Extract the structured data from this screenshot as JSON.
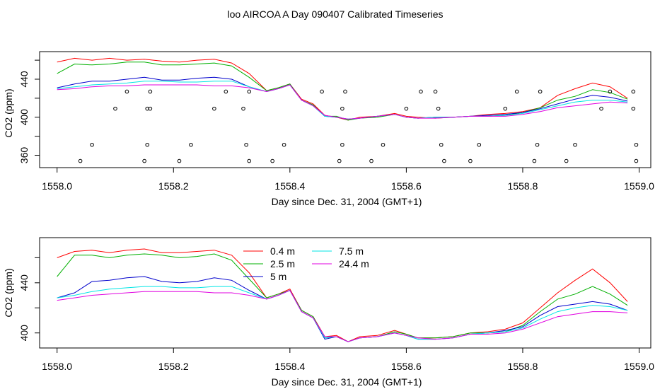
{
  "title": "loo AIRCOA A  Day 090407  Calibrated Timeseries",
  "colors": {
    "0.4 m": "#ff0000",
    "2.5 m": "#00b000",
    "5 m": "#0000cc",
    "7.5 m": "#00e5e5",
    "24.4 m": "#e000e0"
  },
  "chart_data": [
    {
      "type": "line",
      "xlabel": "Day since Dec. 31, 2004 (GMT+1)",
      "ylabel": "CO2 (ppm)",
      "xlim": [
        1557.97,
        1559.02
      ],
      "ylim": [
        347,
        469
      ],
      "xticks": [
        1558.0,
        1558.2,
        1558.4,
        1558.6,
        1558.8,
        1559.0
      ],
      "xtick_labels": [
        "1558.0",
        "1558.2",
        "1558.4",
        "1558.6",
        "1558.8",
        "1559.0"
      ],
      "yticks": [
        360,
        400,
        440
      ],
      "ytick_labels": [
        "360",
        "400",
        "440"
      ],
      "grid": false,
      "x": [
        1558.0,
        1558.03,
        1558.06,
        1558.09,
        1558.12,
        1558.15,
        1558.18,
        1558.21,
        1558.24,
        1558.27,
        1558.3,
        1558.33,
        1558.36,
        1558.38,
        1558.4,
        1558.42,
        1558.44,
        1558.46,
        1558.48,
        1558.5,
        1558.52,
        1558.55,
        1558.58,
        1558.6,
        1558.62,
        1558.65,
        1558.68,
        1558.71,
        1558.74,
        1558.77,
        1558.8,
        1558.83,
        1558.86,
        1558.89,
        1558.92,
        1558.95,
        1558.98
      ],
      "series": [
        {
          "name": "0.4 m",
          "values": [
            458,
            462,
            460,
            462,
            460,
            461,
            459,
            458,
            460,
            461,
            457,
            446,
            428,
            431,
            435,
            419,
            414,
            402,
            400,
            397,
            400,
            401,
            404,
            401,
            400,
            399,
            400,
            401,
            403,
            404,
            406,
            410,
            423,
            430,
            436,
            432,
            420
          ]
        },
        {
          "name": "2.5 m",
          "values": [
            446,
            456,
            455,
            456,
            458,
            458,
            455,
            455,
            456,
            457,
            454,
            442,
            428,
            431,
            435,
            418,
            413,
            401,
            401,
            397,
            399,
            400,
            403,
            400,
            399,
            400,
            400,
            401,
            401,
            402,
            405,
            410,
            418,
            422,
            429,
            426,
            419
          ]
        },
        {
          "name": "5 m",
          "values": [
            431,
            435,
            438,
            438,
            440,
            442,
            439,
            439,
            441,
            442,
            440,
            432,
            427,
            430,
            434,
            418,
            412,
            401,
            400,
            398,
            399,
            401,
            403,
            400,
            399,
            400,
            400,
            401,
            402,
            403,
            405,
            409,
            414,
            419,
            423,
            421,
            417
          ]
        },
        {
          "name": "7.5 m",
          "values": [
            430,
            432,
            434,
            435,
            436,
            438,
            438,
            437,
            437,
            438,
            438,
            432,
            427,
            430,
            434,
            418,
            412,
            401,
            400,
            398,
            399,
            401,
            403,
            400,
            399,
            400,
            400,
            401,
            401,
            402,
            404,
            408,
            412,
            416,
            418,
            418,
            416
          ]
        },
        {
          "name": "24.4 m",
          "values": [
            429,
            430,
            432,
            433,
            433,
            434,
            434,
            434,
            434,
            433,
            433,
            431,
            427,
            430,
            434,
            418,
            412,
            402,
            400,
            398,
            399,
            401,
            403,
            400,
            399,
            399,
            400,
            401,
            401,
            401,
            403,
            406,
            410,
            412,
            414,
            416,
            415
          ]
        }
      ],
      "markers": {
        "x": [
          1558.04,
          1558.06,
          1558.1,
          1558.12,
          1558.15,
          1558.155,
          1558.155,
          1558.16,
          1558.16,
          1558.21,
          1558.23,
          1558.27,
          1558.29,
          1558.32,
          1558.325,
          1558.33,
          1558.33,
          1558.37,
          1558.39,
          1558.455,
          1558.485,
          1558.49,
          1558.49,
          1558.495,
          1558.54,
          1558.56,
          1558.6,
          1558.625,
          1558.65,
          1558.655,
          1558.66,
          1558.665,
          1558.71,
          1558.725,
          1558.77,
          1558.79,
          1558.82,
          1558.825,
          1558.83,
          1558.875,
          1558.89,
          1558.935,
          1558.95,
          1558.99,
          1558.99,
          1558.995,
          1558.995
        ],
        "values": [
          354,
          371,
          409,
          427,
          354,
          371,
          409,
          427,
          409,
          354,
          371,
          409,
          427,
          409,
          371,
          427,
          354,
          354,
          371,
          427,
          354,
          371,
          409,
          427,
          354,
          371,
          409,
          427,
          427,
          409,
          371,
          354,
          354,
          371,
          409,
          427,
          354,
          371,
          427,
          354,
          371,
          409,
          427,
          427,
          409,
          371,
          354
        ]
      }
    },
    {
      "type": "line",
      "xlabel": "Day since Dec. 31, 2004 (GMT+1)",
      "ylabel": "CO2 (ppm)",
      "xlim": [
        1557.97,
        1559.02
      ],
      "ylim": [
        388,
        476
      ],
      "xticks": [
        1558.0,
        1558.2,
        1558.4,
        1558.6,
        1558.8,
        1559.0
      ],
      "xtick_labels": [
        "1558.0",
        "1558.2",
        "1558.4",
        "1558.6",
        "1558.8",
        "1559.0"
      ],
      "yticks": [
        400,
        440
      ],
      "ytick_labels": [
        "400",
        "440"
      ],
      "grid": false,
      "legend": "top-center",
      "legend_columns": [
        [
          "0.4 m",
          "2.5 m",
          "5 m"
        ],
        [
          "7.5 m",
          "24.4 m"
        ]
      ],
      "x": [
        1558.0,
        1558.03,
        1558.06,
        1558.09,
        1558.12,
        1558.15,
        1558.18,
        1558.21,
        1558.24,
        1558.27,
        1558.3,
        1558.33,
        1558.36,
        1558.38,
        1558.4,
        1558.42,
        1558.44,
        1558.46,
        1558.48,
        1558.5,
        1558.52,
        1558.55,
        1558.58,
        1558.6,
        1558.62,
        1558.65,
        1558.68,
        1558.71,
        1558.74,
        1558.77,
        1558.8,
        1558.83,
        1558.86,
        1558.89,
        1558.92,
        1558.95,
        1558.98
      ],
      "series": [
        {
          "name": "0.4 m",
          "values": [
            460,
            465,
            466,
            464,
            466,
            467,
            464,
            464,
            465,
            466,
            462,
            448,
            428,
            431,
            435,
            418,
            413,
            397,
            398,
            393,
            397,
            398,
            402,
            399,
            396,
            396,
            397,
            400,
            401,
            403,
            408,
            420,
            432,
            442,
            451,
            440,
            425
          ]
        },
        {
          "name": "2.5 m",
          "values": [
            445,
            462,
            462,
            460,
            462,
            463,
            462,
            460,
            461,
            463,
            458,
            443,
            428,
            431,
            434,
            418,
            413,
            396,
            397,
            393,
            396,
            397,
            401,
            399,
            396,
            396,
            397,
            400,
            400,
            401,
            406,
            417,
            427,
            431,
            437,
            431,
            422
          ]
        },
        {
          "name": "5 m",
          "values": [
            428,
            432,
            441,
            442,
            444,
            445,
            441,
            440,
            441,
            444,
            442,
            434,
            427,
            430,
            434,
            417,
            412,
            395,
            397,
            393,
            396,
            397,
            400,
            398,
            395,
            395,
            396,
            399,
            400,
            402,
            405,
            414,
            421,
            423,
            425,
            423,
            418
          ]
        },
        {
          "name": "7.5 m",
          "values": [
            428,
            430,
            433,
            435,
            436,
            437,
            437,
            436,
            436,
            437,
            437,
            432,
            427,
            430,
            434,
            417,
            412,
            396,
            397,
            393,
            396,
            397,
            400,
            398,
            395,
            395,
            396,
            399,
            400,
            401,
            404,
            411,
            417,
            420,
            422,
            421,
            418
          ]
        },
        {
          "name": "24.4 m",
          "values": [
            426,
            428,
            430,
            431,
            432,
            433,
            433,
            433,
            433,
            432,
            432,
            430,
            427,
            430,
            434,
            417,
            412,
            397,
            397,
            393,
            396,
            397,
            400,
            398,
            396,
            395,
            396,
            399,
            399,
            400,
            403,
            408,
            413,
            415,
            417,
            417,
            416
          ]
        }
      ]
    }
  ]
}
